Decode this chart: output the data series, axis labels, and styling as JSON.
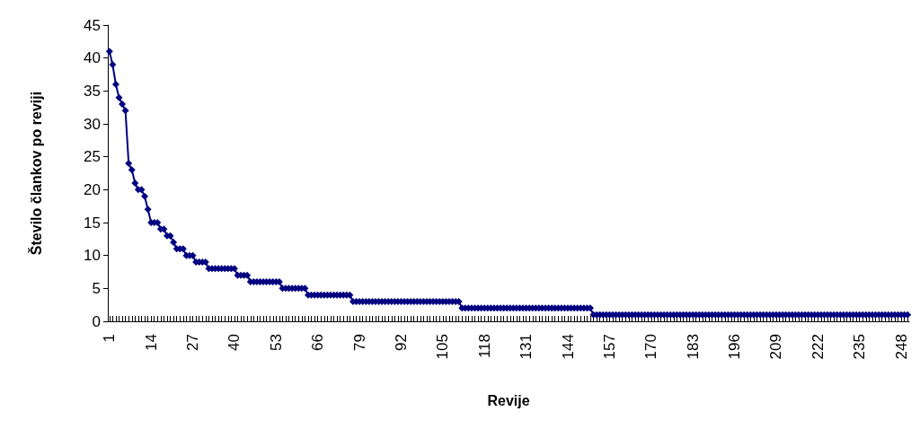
{
  "chart_data": {
    "type": "line",
    "xlabel": "Revije",
    "ylabel": "Število člankov po reviji",
    "color": "#000080",
    "marker": "diamond",
    "line_style": "solid",
    "grid": false,
    "ylim": [
      0,
      45
    ],
    "yticks": [
      0,
      5,
      10,
      15,
      20,
      25,
      30,
      35,
      40,
      45
    ],
    "categories": [
      "1",
      null,
      null,
      null,
      null,
      null,
      null,
      null,
      null,
      null,
      null,
      null,
      null,
      "14",
      null,
      null,
      null,
      null,
      null,
      null,
      null,
      null,
      null,
      null,
      null,
      null,
      "27",
      null,
      null,
      null,
      null,
      null,
      null,
      null,
      null,
      null,
      null,
      null,
      null,
      "40",
      null,
      null,
      null,
      null,
      null,
      null,
      null,
      null,
      null,
      null,
      null,
      null,
      "53",
      null,
      null,
      null,
      null,
      null,
      null,
      null,
      null,
      null,
      null,
      null,
      null,
      "66",
      null,
      null,
      null,
      null,
      null,
      null,
      null,
      null,
      null,
      null,
      null,
      null,
      "79",
      null,
      null,
      null,
      null,
      null,
      null,
      null,
      null,
      null,
      null,
      null,
      null,
      "92",
      null,
      null,
      null,
      null,
      null,
      null,
      null,
      null,
      null,
      null,
      null,
      null,
      "105",
      null,
      null,
      null,
      null,
      null,
      null,
      null,
      null,
      null,
      null,
      null,
      null,
      "118",
      null,
      null,
      null,
      null,
      null,
      null,
      null,
      null,
      null,
      null,
      null,
      null,
      "131",
      null,
      null,
      null,
      null,
      null,
      null,
      null,
      null,
      null,
      null,
      null,
      null,
      "144",
      null,
      null,
      null,
      null,
      null,
      null,
      null,
      null,
      null,
      null,
      null,
      null,
      "157",
      null,
      null,
      null,
      null,
      null,
      null,
      null,
      null,
      null,
      null,
      null,
      null,
      "170",
      null,
      null,
      null,
      null,
      null,
      null,
      null,
      null,
      null,
      null,
      null,
      null,
      "183",
      null,
      null,
      null,
      null,
      null,
      null,
      null,
      null,
      null,
      null,
      null,
      null,
      "196",
      null,
      null,
      null,
      null,
      null,
      null,
      null,
      null,
      null,
      null,
      null,
      null,
      "209",
      null,
      null,
      null,
      null,
      null,
      null,
      null,
      null,
      null,
      null,
      null,
      null,
      "222",
      null,
      null,
      null,
      null,
      null,
      null,
      null,
      null,
      null,
      null,
      null,
      null,
      "235",
      null,
      null,
      null,
      null,
      null,
      null,
      null,
      null,
      null,
      null,
      null,
      null,
      "248",
      null,
      null
    ],
    "values": [
      41,
      39,
      36,
      34,
      33,
      32,
      24,
      23,
      21,
      20,
      20,
      19,
      17,
      15,
      15,
      15,
      14,
      14,
      13,
      13,
      12,
      11,
      11,
      11,
      10,
      10,
      10,
      9,
      9,
      9,
      9,
      8,
      8,
      8,
      8,
      8,
      8,
      8,
      8,
      8,
      7,
      7,
      7,
      7,
      6,
      6,
      6,
      6,
      6,
      6,
      6,
      6,
      6,
      6,
      5,
      5,
      5,
      5,
      5,
      5,
      5,
      5,
      4,
      4,
      4,
      4,
      4,
      4,
      4,
      4,
      4,
      4,
      4,
      4,
      4,
      4,
      3,
      3,
      3,
      3,
      3,
      3,
      3,
      3,
      3,
      3,
      3,
      3,
      3,
      3,
      3,
      3,
      3,
      3,
      3,
      3,
      3,
      3,
      3,
      3,
      3,
      3,
      3,
      3,
      3,
      3,
      3,
      3,
      3,
      3,
      2,
      2,
      2,
      2,
      2,
      2,
      2,
      2,
      2,
      2,
      2,
      2,
      2,
      2,
      2,
      2,
      2,
      2,
      2,
      2,
      2,
      2,
      2,
      2,
      2,
      2,
      2,
      2,
      2,
      2,
      2,
      2,
      2,
      2,
      2,
      2,
      2,
      2,
      2,
      2,
      2,
      1,
      1,
      1,
      1,
      1,
      1,
      1,
      1,
      1,
      1,
      1,
      1,
      1,
      1,
      1,
      1,
      1,
      1,
      1,
      1,
      1,
      1,
      1,
      1,
      1,
      1,
      1,
      1,
      1,
      1,
      1,
      1,
      1,
      1,
      1,
      1,
      1,
      1,
      1,
      1,
      1,
      1,
      1,
      1,
      1,
      1,
      1,
      1,
      1,
      1,
      1,
      1,
      1,
      1,
      1,
      1,
      1,
      1,
      1,
      1,
      1,
      1,
      1,
      1,
      1,
      1,
      1,
      1,
      1,
      1,
      1,
      1,
      1,
      1,
      1,
      1,
      1,
      1,
      1,
      1,
      1,
      1,
      1,
      1,
      1,
      1,
      1,
      1,
      1,
      1,
      1,
      1,
      1,
      1,
      1,
      1,
      1,
      1,
      1
    ]
  }
}
